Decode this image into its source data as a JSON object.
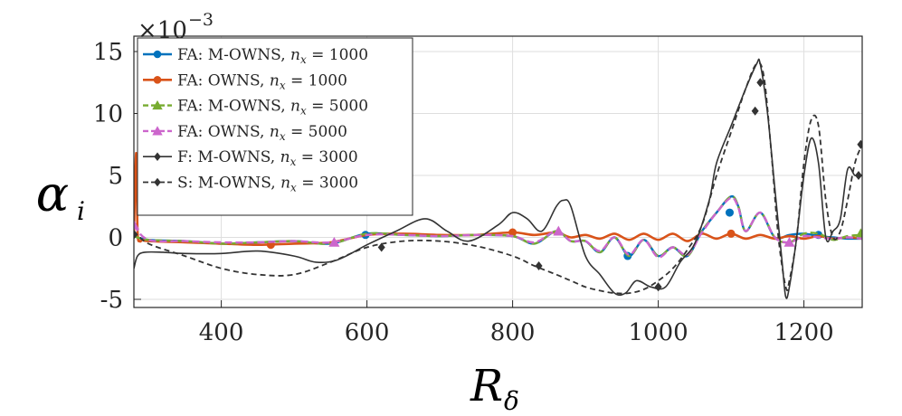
{
  "chart_data": {
    "type": "line",
    "xlabel": "R",
    "xlabel_sub": "δ",
    "ylabel": "α",
    "ylabel_sub": "i",
    "multiplier_base": "×10",
    "multiplier_exp": "−3",
    "xlim": [
      280,
      1280
    ],
    "ylim": [
      -6,
      15
    ],
    "xticks": [
      400,
      600,
      800,
      1000,
      1200
    ],
    "yticks": [
      15,
      10,
      5,
      0,
      -5
    ],
    "ytick_labels": [
      "15",
      "10",
      "5",
      "0",
      "-5"
    ],
    "grid": true,
    "legend_position": "top-left",
    "series": [
      {
        "name": "FA: M-OWNS, n_x = 1000",
        "legend_prefix": "FA: M-OWNS, ",
        "legend_var": "n",
        "legend_sub": "x",
        "legend_suffix": " = 1000",
        "color": "#0072BD",
        "dash": "solid",
        "marker": "circle",
        "x": [
          280,
          300,
          350,
          400,
          450,
          500,
          550,
          600,
          650,
          700,
          750,
          800,
          830,
          860,
          880,
          900,
          920,
          940,
          960,
          980,
          1000,
          1020,
          1040,
          1060,
          1080,
          1100,
          1110,
          1120,
          1140,
          1160,
          1180,
          1200,
          1220,
          1240,
          1260,
          1280
        ],
        "y": [
          0.1,
          -0.2,
          -0.3,
          -0.5,
          -0.4,
          -0.3,
          -0.5,
          0.3,
          0.2,
          0.1,
          0.2,
          0.1,
          -0.5,
          0.5,
          -0.3,
          -0.3,
          -1.2,
          0.0,
          -1.5,
          -0.2,
          -1.5,
          -0.8,
          -1.5,
          0.5,
          2.0,
          3.3,
          2.5,
          0.5,
          2.0,
          0.0,
          0.2,
          0.3,
          0.1,
          0.0,
          -0.1,
          -0.1
        ],
        "marker_x": [
          598,
          958,
          1098,
          1220
        ],
        "marker_y": [
          0.2,
          -1.5,
          2.0,
          0.2
        ]
      },
      {
        "name": "FA: OWNS, n_x = 1000",
        "legend_prefix": "FA: OWNS, ",
        "legend_var": "n",
        "legend_sub": "x",
        "legend_suffix": " = 1000",
        "color": "#D95319",
        "dash": "solid",
        "marker": "circle",
        "x": [
          280,
          283,
          285,
          288,
          292,
          300,
          350,
          400,
          450,
          500,
          550,
          600,
          650,
          700,
          750,
          800,
          830,
          860,
          880,
          900,
          920,
          940,
          960,
          980,
          1000,
          1020,
          1040,
          1060,
          1080,
          1100,
          1120,
          1140,
          1160,
          1180,
          1200,
          1220,
          1240,
          1260,
          1280
        ],
        "y": [
          0.0,
          6.8,
          0.5,
          -0.3,
          -0.2,
          -0.3,
          -0.4,
          -0.5,
          -0.6,
          -0.5,
          -0.4,
          0.2,
          0.3,
          0.2,
          0.2,
          0.4,
          0.2,
          0.4,
          0.0,
          0.2,
          -0.1,
          0.3,
          -0.2,
          0.3,
          -0.2,
          0.3,
          -0.3,
          0.3,
          -0.1,
          0.3,
          -0.1,
          0.2,
          -0.1,
          0.1,
          -0.1,
          0.1,
          -0.1,
          0.0,
          -0.1
        ],
        "marker_x": [
          468,
          800,
          1100
        ],
        "marker_y": [
          -0.6,
          0.4,
          0.3
        ]
      },
      {
        "name": "FA: M-OWNS, n_x = 5000",
        "legend_prefix": "FA: M-OWNS, ",
        "legend_var": "n",
        "legend_sub": "x",
        "legend_suffix": " = 5000",
        "color": "#77AC30",
        "dash": "dashed",
        "marker": "triangle",
        "x": [
          280,
          300,
          350,
          400,
          450,
          500,
          550,
          600,
          650,
          700,
          750,
          800,
          830,
          860,
          880,
          900,
          920,
          940,
          960,
          980,
          1000,
          1020,
          1040,
          1060,
          1080,
          1100,
          1110,
          1120,
          1140,
          1160,
          1180,
          1200,
          1220,
          1240,
          1260,
          1280
        ],
        "y": [
          0.1,
          -0.2,
          -0.3,
          -0.5,
          -0.4,
          -0.3,
          -0.5,
          0.3,
          0.2,
          0.1,
          0.2,
          0.1,
          -0.5,
          0.5,
          -0.3,
          -0.3,
          -1.2,
          0.0,
          -1.5,
          -0.2,
          -1.5,
          -0.8,
          -1.5,
          0.5,
          2.0,
          3.3,
          2.5,
          0.5,
          2.0,
          0.0,
          -0.4,
          0.3,
          0.3,
          -0.2,
          0.1,
          0.2
        ],
        "marker_x": [
          1278
        ],
        "marker_y": [
          0.3
        ]
      },
      {
        "name": "FA: OWNS, n_x = 5000",
        "legend_prefix": "FA: OWNS, ",
        "legend_var": "n",
        "legend_sub": "x",
        "legend_suffix": " = 5000",
        "color": "#CC66CC",
        "dash": "dashed",
        "marker": "triangle",
        "x": [
          280,
          300,
          350,
          400,
          450,
          500,
          550,
          600,
          650,
          700,
          750,
          800,
          830,
          860,
          880,
          900,
          920,
          940,
          960,
          980,
          1000,
          1020,
          1040,
          1060,
          1080,
          1100,
          1110,
          1120,
          1140,
          1160,
          1180,
          1200,
          1220,
          1240,
          1260,
          1280
        ],
        "y": [
          1.0,
          -0.2,
          -0.3,
          -0.4,
          -0.4,
          -0.3,
          -0.4,
          0.2,
          0.2,
          0.1,
          0.2,
          0.1,
          -0.4,
          0.5,
          -0.3,
          -0.3,
          -1.1,
          0.0,
          -1.4,
          -0.2,
          -1.6,
          -0.8,
          -1.4,
          0.4,
          2.0,
          3.2,
          2.4,
          0.5,
          2.0,
          0.0,
          -0.4,
          0.1,
          0.0,
          -0.1,
          0.0,
          -0.1
        ],
        "marker_x": [
          280,
          555,
          863,
          1180
        ],
        "marker_y": [
          1.0,
          -0.4,
          0.5,
          -0.4
        ]
      },
      {
        "name": "F: M-OWNS, n_x = 3000",
        "legend_prefix": "F: M-OWNS, ",
        "legend_var": "n",
        "legend_sub": "x",
        "legend_suffix": " = 3000",
        "color": "#333333",
        "dash": "solid",
        "marker": "diamond",
        "x": [
          280,
          285,
          295,
          320,
          350,
          400,
          450,
          500,
          530,
          560,
          600,
          640,
          680,
          710,
          740,
          780,
          800,
          820,
          840,
          860,
          870,
          880,
          900,
          920,
          940,
          955,
          970,
          990,
          1010,
          1030,
          1050,
          1070,
          1080,
          1100,
          1120,
          1135,
          1140,
          1150,
          1160,
          1170,
          1175,
          1180,
          1190,
          1200,
          1210,
          1220,
          1230,
          1240,
          1250,
          1260,
          1270,
          1280
        ],
        "y": [
          -2.5,
          -1.5,
          -1.2,
          -1.2,
          -1.3,
          -1.3,
          -1.1,
          -1.5,
          -2.0,
          -1.8,
          -0.6,
          0.5,
          1.5,
          0.5,
          -0.3,
          1.0,
          2.0,
          1.5,
          0.5,
          2.5,
          3.0,
          2.5,
          -1.5,
          -3.0,
          -4.5,
          -4.5,
          -3.5,
          -4.0,
          -4.0,
          -2.0,
          -0.5,
          3.0,
          6.0,
          9.0,
          12.0,
          14.0,
          14.0,
          10.0,
          4.0,
          -2.0,
          -4.8,
          -4.0,
          0.0,
          5.0,
          8.0,
          6.0,
          0.0,
          0.5,
          1.5,
          5.5,
          5.0,
          5.0
        ],
        "marker_x": [
          280,
          620,
          1000,
          1140,
          1275
        ],
        "marker_y": [
          0.2,
          -0.8,
          -4.0,
          12.5,
          5.0
        ]
      },
      {
        "name": "S: M-OWNS, n_x = 3000",
        "legend_prefix": "S: M-OWNS, ",
        "legend_var": "n",
        "legend_sub": "x",
        "legend_suffix": " = 3000",
        "color": "#333333",
        "dash": "dashed",
        "marker": "diamond",
        "x": [
          280,
          300,
          350,
          400,
          450,
          500,
          550,
          600,
          650,
          700,
          750,
          800,
          830,
          860,
          880,
          900,
          920,
          940,
          960,
          980,
          1000,
          1020,
          1040,
          1060,
          1080,
          1100,
          1120,
          1135,
          1145,
          1155,
          1165,
          1175,
          1180,
          1190,
          1200,
          1210,
          1220,
          1230,
          1240,
          1250,
          1260,
          1270,
          1280
        ],
        "y": [
          0.5,
          -0.5,
          -1.5,
          -2.5,
          -3.0,
          -3.0,
          -2.0,
          -0.8,
          -0.3,
          -0.3,
          -0.7,
          -1.5,
          -2.3,
          -3.0,
          -3.5,
          -4.0,
          -4.3,
          -4.5,
          -4.5,
          -4.2,
          -3.5,
          -2.5,
          -1.0,
          1.0,
          5.0,
          8.5,
          12.0,
          14.0,
          13.0,
          7.0,
          0.0,
          -4.0,
          -3.5,
          0.0,
          6.0,
          9.5,
          9.0,
          3.0,
          0.0,
          0.5,
          3.0,
          6.0,
          7.5
        ],
        "marker_x": [
          836,
          1133,
          1278
        ],
        "marker_y": [
          -2.3,
          10.2,
          7.5
        ]
      }
    ]
  }
}
